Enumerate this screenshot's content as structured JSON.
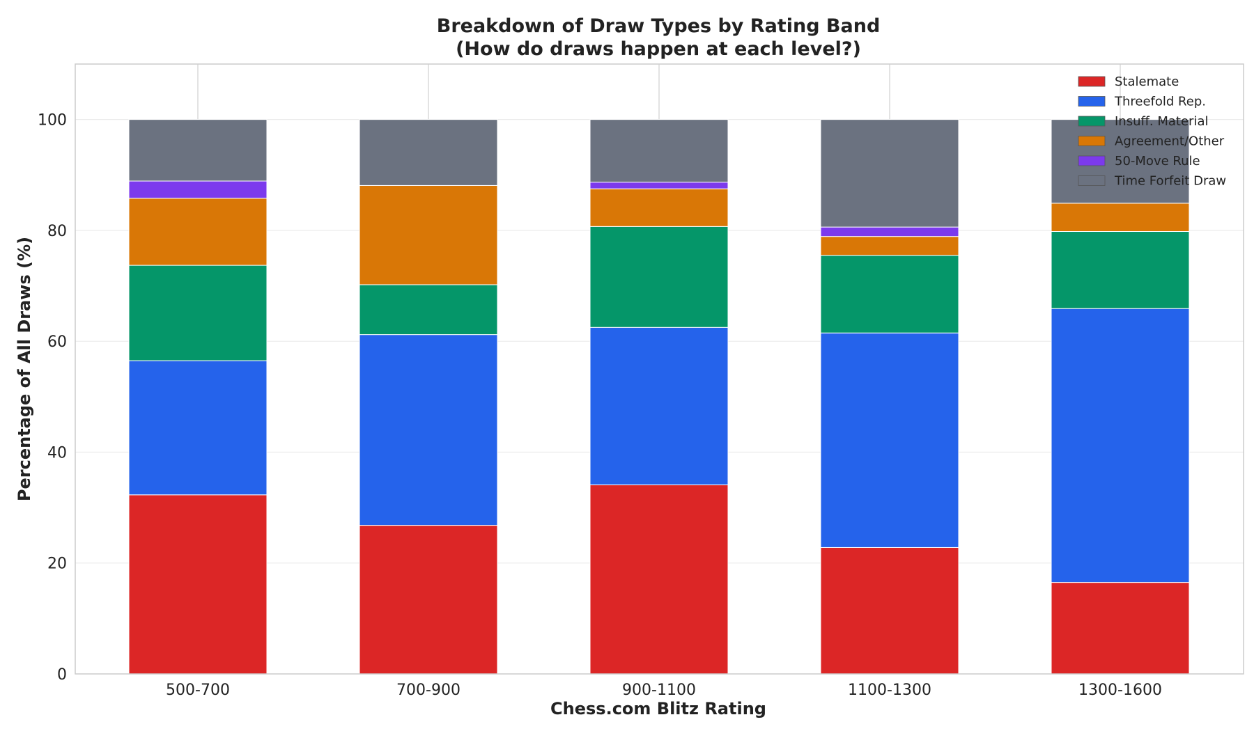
{
  "chart_data": {
    "type": "bar",
    "stacked": true,
    "title": "Breakdown of Draw Types by Rating Band",
    "subtitle": "(How do draws happen at each level?)",
    "xlabel": "Chess.com Blitz Rating",
    "ylabel": "Percentage of All Draws (%)",
    "ylim": [
      0,
      110
    ],
    "yticks": [
      0,
      20,
      40,
      60,
      80,
      100
    ],
    "grid": true,
    "legend_position": "top-right",
    "categories": [
      "500-700",
      "700-900",
      "900-1100",
      "1100-1300",
      "1300-1600"
    ],
    "series": [
      {
        "name": "Stalemate",
        "color": "#dc2626",
        "values": [
          32.3,
          26.8,
          34.1,
          22.8,
          16.5
        ]
      },
      {
        "name": "Threefold Rep.",
        "color": "#2563eb",
        "values": [
          24.2,
          34.4,
          28.4,
          38.7,
          49.4
        ]
      },
      {
        "name": "Insuff. Material",
        "color": "#059669",
        "values": [
          17.2,
          9.0,
          18.2,
          14.0,
          13.9
        ]
      },
      {
        "name": "Agreement/Other",
        "color": "#d97706",
        "values": [
          12.1,
          17.9,
          6.8,
          3.4,
          5.1
        ]
      },
      {
        "name": "50-Move Rule",
        "color": "#7c3aed",
        "values": [
          3.1,
          0.0,
          1.2,
          1.7,
          0.0
        ]
      },
      {
        "name": "Time Forfeit Draw",
        "color": "#6b7280",
        "values": [
          11.1,
          11.9,
          11.3,
          19.4,
          15.1
        ]
      }
    ]
  }
}
